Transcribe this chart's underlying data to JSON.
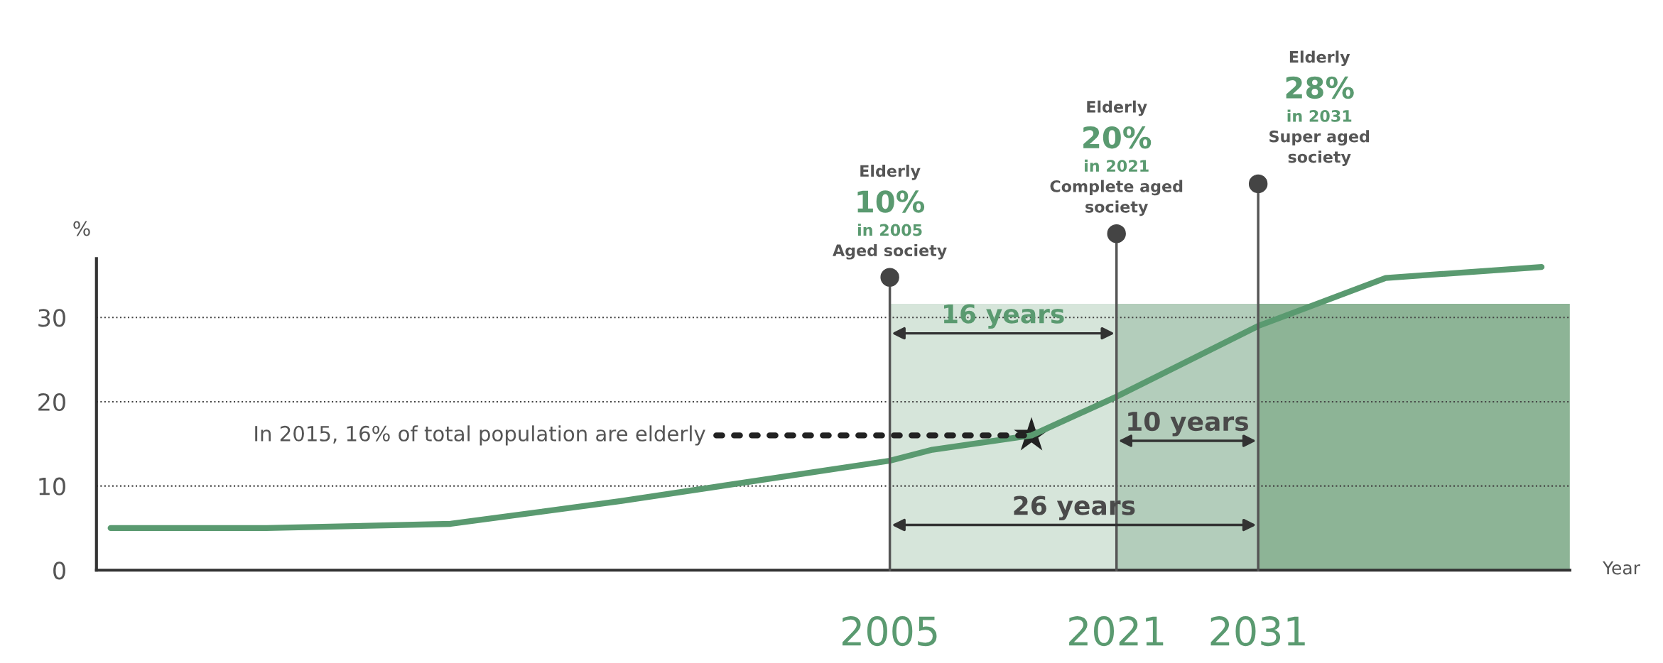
{
  "chart_data": {
    "type": "line",
    "xlabel": "Year",
    "ylabel": "%",
    "series": [
      {
        "color": "#5a9a70",
        "x": [
          1950,
          1961,
          1974,
          1986,
          2005,
          2008,
          2015,
          2021,
          2031,
          2040,
          2051
        ],
        "values": [
          5,
          5,
          5.5,
          8.2,
          13,
          14.3,
          16,
          20.6,
          29,
          34.7,
          36
        ]
      },
      {
        "type": "scatter",
        "color": "#222222",
        "marker": "star",
        "x": [
          2015
        ],
        "values": [
          16
        ]
      }
    ],
    "xlim": [
      1949,
      2053
    ],
    "ylim": [
      0,
      37
    ],
    "xticks": [
      2005,
      2021,
      2031
    ],
    "yticks": [
      0,
      10,
      20,
      30
    ],
    "grid": "y",
    "legend": false,
    "ref_lines": [
      {
        "axis": "x",
        "value": 2005,
        "label": "Elderly\n10%\nin 2005\nAged society",
        "color": "#555555"
      },
      {
        "axis": "x",
        "value": 2021,
        "label": "Elderly\n20%\nin 2021\nComplete aged\nsociety",
        "color": "#555555"
      },
      {
        "axis": "x",
        "value": 2031,
        "label": "Elderly\n28%\nin 2031\nSuper aged\nsociety",
        "color": "#555555"
      }
    ],
    "bands": [
      {
        "axis": "x",
        "from": 2005,
        "to": 2021,
        "color": "#d6e5da"
      },
      {
        "axis": "x",
        "from": 2021,
        "to": 2031,
        "color": "#b3cdbb"
      },
      {
        "axis": "x",
        "from": 2031,
        "to": 2053,
        "color": "#8db496"
      }
    ],
    "annotations": [
      "16 years",
      "10 years",
      "26 years",
      {
        "text": "In 2015, 16% of total population are elderly",
        "x": 2015,
        "y": 16
      }
    ]
  }
}
